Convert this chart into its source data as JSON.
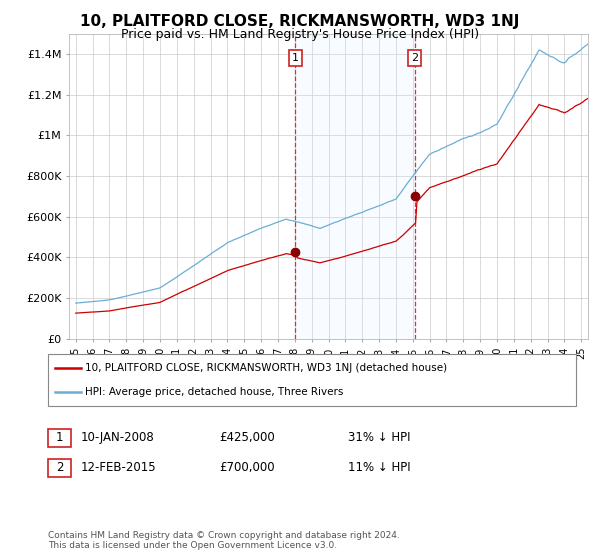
{
  "title": "10, PLAITFORD CLOSE, RICKMANSWORTH, WD3 1NJ",
  "subtitle": "Price paid vs. HM Land Registry's House Price Index (HPI)",
  "title_fontsize": 11,
  "subtitle_fontsize": 9,
  "background_color": "#ffffff",
  "plot_bg_color": "#ffffff",
  "grid_color": "#cccccc",
  "ylim": [
    0,
    1500000
  ],
  "yticks": [
    0,
    200000,
    400000,
    600000,
    800000,
    1000000,
    1200000,
    1400000
  ],
  "ytick_labels": [
    "£0",
    "£200K",
    "£400K",
    "£600K",
    "£800K",
    "£1M",
    "£1.2M",
    "£1.4M"
  ],
  "hpi_color": "#6baed6",
  "price_color": "#cc0000",
  "marker_color": "#8b0000",
  "vline_color": "#cc2222",
  "shade_color": "#ddeeff",
  "sale1_year": 2008.04,
  "sale1_price": 425000,
  "sale2_year": 2015.12,
  "sale2_price": 700000,
  "legend_label_price": "10, PLAITFORD CLOSE, RICKMANSWORTH, WD3 1NJ (detached house)",
  "legend_label_hpi": "HPI: Average price, detached house, Three Rivers",
  "annotation1_date": "10-JAN-2008",
  "annotation1_price": "£425,000",
  "annotation1_hpi": "31% ↓ HPI",
  "annotation2_date": "12-FEB-2015",
  "annotation2_price": "£700,000",
  "annotation2_hpi": "11% ↓ HPI",
  "footer": "Contains HM Land Registry data © Crown copyright and database right 2024.\nThis data is licensed under the Open Government Licence v3.0."
}
